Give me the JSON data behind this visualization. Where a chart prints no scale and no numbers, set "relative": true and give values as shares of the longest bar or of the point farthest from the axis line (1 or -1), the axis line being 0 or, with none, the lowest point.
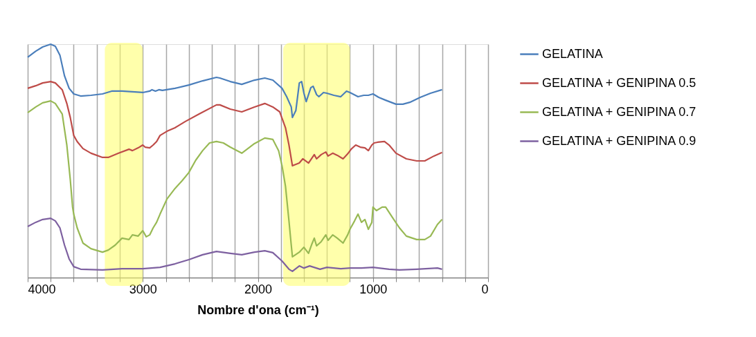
{
  "chart_data": {
    "type": "line",
    "relative": true,
    "xlabel": "Nombre d'ona (cm⁻¹)",
    "xlim": [
      4000,
      0
    ],
    "xticks": [
      4000,
      {
        "value": 3800,
        "label": null
      },
      {
        "value": 3600,
        "label": null
      },
      {
        "value": 3400,
        "label": null
      },
      {
        "value": 3200,
        "label": null
      },
      3000,
      {
        "value": 2800,
        "label": null
      },
      {
        "value": 2600,
        "label": null
      },
      {
        "value": 2400,
        "label": null
      },
      {
        "value": 2200,
        "label": null
      },
      2000,
      {
        "value": 1800,
        "label": null
      },
      {
        "value": 1600,
        "label": null
      },
      {
        "value": 1400,
        "label": null
      },
      {
        "value": 1200,
        "label": null
      },
      1000,
      {
        "value": 800,
        "label": null
      },
      {
        "value": 600,
        "label": null
      },
      {
        "value": 400,
        "label": null
      },
      {
        "value": 200,
        "label": null
      },
      0
    ],
    "grid": "x",
    "legend": "right",
    "marker": "none",
    "line_style": "solid",
    "bands": [
      {
        "axis": "x",
        "from": 3330,
        "to": 3000,
        "color": "#ffff66"
      },
      {
        "axis": "x",
        "from": 1780,
        "to": 1200,
        "color": "#ffff66"
      }
    ],
    "series": [
      {
        "name": "GELATINA",
        "color": "#4a7ebb",
        "x": [
          4000,
          3930,
          3870,
          3800,
          3760,
          3720,
          3680,
          3640,
          3600,
          3540,
          3450,
          3350,
          3270,
          3180,
          3000,
          2940,
          2920,
          2890,
          2860,
          2830,
          2720,
          2600,
          2480,
          2360,
          2330,
          2240,
          2140,
          2030,
          1940,
          1870,
          1790,
          1750,
          1710,
          1700,
          1670,
          1640,
          1620,
          1600,
          1580,
          1540,
          1520,
          1490,
          1470,
          1430,
          1400,
          1340,
          1280,
          1230,
          1200,
          1130,
          1080,
          1040,
          1000,
          950,
          890,
          800,
          740,
          680,
          590,
          500,
          400
        ],
        "values": [
          0.944,
          0.97,
          0.988,
          1,
          0.991,
          0.953,
          0.864,
          0.811,
          0.787,
          0.778,
          0.781,
          0.787,
          0.799,
          0.799,
          0.793,
          0.799,
          0.805,
          0.799,
          0.805,
          0.802,
          0.811,
          0.825,
          0.843,
          0.858,
          0.855,
          0.84,
          0.828,
          0.846,
          0.855,
          0.846,
          0.811,
          0.775,
          0.731,
          0.686,
          0.716,
          0.834,
          0.84,
          0.79,
          0.754,
          0.814,
          0.82,
          0.784,
          0.775,
          0.793,
          0.79,
          0.781,
          0.775,
          0.799,
          0.793,
          0.775,
          0.781,
          0.781,
          0.787,
          0.772,
          0.76,
          0.743,
          0.743,
          0.751,
          0.772,
          0.79,
          0.805
        ]
      },
      {
        "name": "GELATINA + GENIPINA 0.5",
        "color": "#be4b48",
        "x": [
          4000,
          3930,
          3870,
          3800,
          3760,
          3700,
          3660,
          3630,
          3600,
          3570,
          3520,
          3450,
          3350,
          3300,
          3210,
          3120,
          3090,
          3040,
          3000,
          2980,
          2940,
          2910,
          2880,
          2850,
          2790,
          2720,
          2630,
          2510,
          2360,
          2330,
          2240,
          2140,
          2030,
          1940,
          1870,
          1810,
          1760,
          1730,
          1710,
          1700,
          1640,
          1610,
          1560,
          1510,
          1490,
          1450,
          1410,
          1390,
          1350,
          1310,
          1260,
          1220,
          1190,
          1150,
          1110,
          1070,
          1040,
          1010,
          990,
          960,
          900,
          860,
          800,
          710,
          620,
          550,
          470,
          400
        ],
        "values": [
          0.811,
          0.822,
          0.834,
          0.84,
          0.834,
          0.805,
          0.746,
          0.686,
          0.609,
          0.583,
          0.553,
          0.533,
          0.515,
          0.515,
          0.533,
          0.55,
          0.544,
          0.556,
          0.568,
          0.559,
          0.556,
          0.568,
          0.583,
          0.609,
          0.627,
          0.642,
          0.669,
          0.701,
          0.74,
          0.74,
          0.722,
          0.71,
          0.731,
          0.746,
          0.731,
          0.71,
          0.642,
          0.568,
          0.509,
          0.479,
          0.491,
          0.509,
          0.491,
          0.527,
          0.509,
          0.527,
          0.538,
          0.521,
          0.533,
          0.524,
          0.509,
          0.53,
          0.55,
          0.568,
          0.559,
          0.556,
          0.544,
          0.568,
          0.577,
          0.58,
          0.583,
          0.568,
          0.533,
          0.509,
          0.5,
          0.5,
          0.521,
          0.536
        ]
      },
      {
        "name": "GELATINA + GENIPINA 0.7",
        "color": "#98b954",
        "x": [
          4000,
          3930,
          3870,
          3800,
          3760,
          3700,
          3660,
          3630,
          3610,
          3600,
          3570,
          3520,
          3450,
          3350,
          3300,
          3240,
          3180,
          3120,
          3090,
          3040,
          3000,
          2970,
          2940,
          2910,
          2880,
          2850,
          2790,
          2720,
          2660,
          2600,
          2540,
          2480,
          2420,
          2360,
          2300,
          2240,
          2140,
          2030,
          1940,
          1870,
          1820,
          1790,
          1760,
          1730,
          1710,
          1700,
          1640,
          1600,
          1560,
          1530,
          1510,
          1490,
          1450,
          1410,
          1390,
          1350,
          1310,
          1260,
          1220,
          1200,
          1160,
          1130,
          1100,
          1070,
          1040,
          1010,
          1000,
          970,
          920,
          890,
          830,
          770,
          710,
          620,
          550,
          500,
          440,
          400
        ],
        "values": [
          0.707,
          0.731,
          0.749,
          0.757,
          0.746,
          0.701,
          0.568,
          0.42,
          0.302,
          0.272,
          0.213,
          0.148,
          0.124,
          0.109,
          0.118,
          0.139,
          0.169,
          0.163,
          0.183,
          0.178,
          0.201,
          0.175,
          0.183,
          0.213,
          0.237,
          0.272,
          0.337,
          0.382,
          0.414,
          0.45,
          0.503,
          0.544,
          0.577,
          0.583,
          0.577,
          0.559,
          0.533,
          0.574,
          0.598,
          0.592,
          0.544,
          0.479,
          0.391,
          0.243,
          0.139,
          0.089,
          0.109,
          0.13,
          0.104,
          0.145,
          0.169,
          0.136,
          0.154,
          0.183,
          0.16,
          0.183,
          0.169,
          0.148,
          0.183,
          0.207,
          0.243,
          0.272,
          0.237,
          0.249,
          0.207,
          0.237,
          0.302,
          0.287,
          0.302,
          0.302,
          0.257,
          0.213,
          0.178,
          0.163,
          0.163,
          0.178,
          0.228,
          0.249
        ]
      },
      {
        "name": "GELATINA + GENIPINA 0.9",
        "color": "#7d60a0",
        "x": [
          4000,
          3930,
          3870,
          3800,
          3760,
          3720,
          3680,
          3640,
          3600,
          3540,
          3350,
          3180,
          3000,
          2850,
          2720,
          2600,
          2480,
          2360,
          2240,
          2140,
          2030,
          1940,
          1870,
          1790,
          1730,
          1700,
          1640,
          1600,
          1550,
          1460,
          1400,
          1280,
          1200,
          1100,
          1000,
          950,
          860,
          770,
          620,
          440,
          400
        ],
        "values": [
          0.219,
          0.237,
          0.249,
          0.254,
          0.243,
          0.213,
          0.139,
          0.08,
          0.047,
          0.036,
          0.033,
          0.038,
          0.038,
          0.044,
          0.059,
          0.077,
          0.098,
          0.112,
          0.104,
          0.098,
          0.109,
          0.115,
          0.107,
          0.071,
          0.036,
          0.027,
          0.05,
          0.041,
          0.05,
          0.036,
          0.044,
          0.038,
          0.041,
          0.041,
          0.044,
          0.041,
          0.036,
          0.033,
          0.036,
          0.041,
          0.036
        ]
      }
    ]
  }
}
